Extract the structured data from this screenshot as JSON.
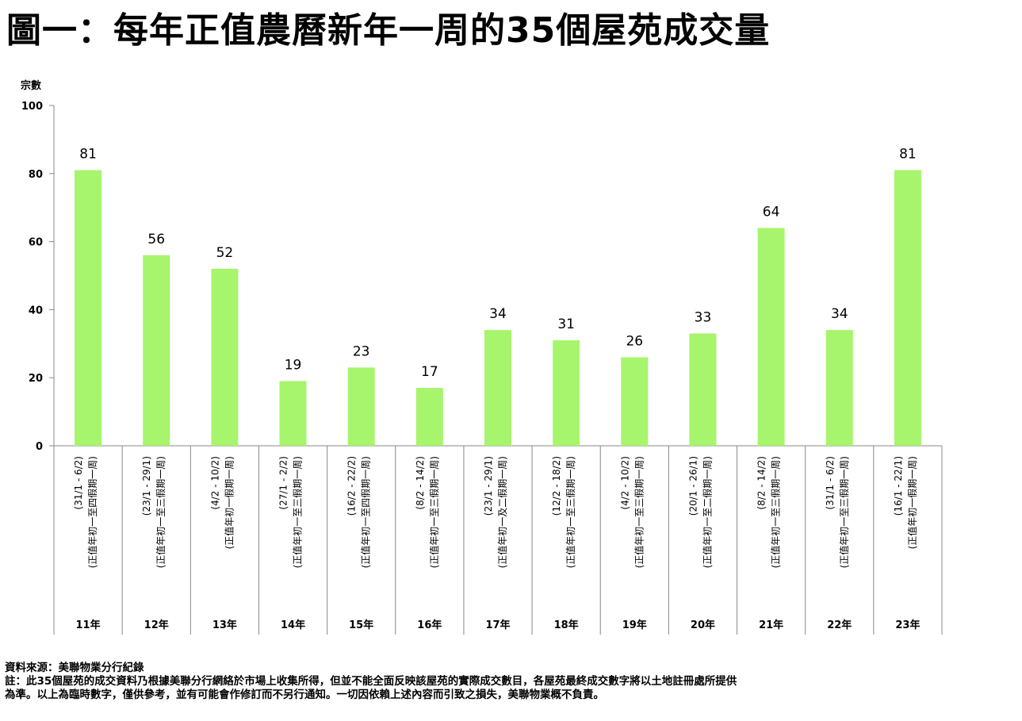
{
  "page": {
    "title": "圖一：每年正值農曆新年一周的35個屋苑成交量",
    "source": "資料來源：美聯物業分行紀錄",
    "note_line1": "註：此35個屋苑的成交資料乃根據美聯分行網絡於市場上收集所得，但並不能全面反映該屋苑的實際成交數目，各屋苑最終成交數字將以土地註冊處所提供",
    "note_line2": "為準。以上為臨時數字，僅供參考，並有可能會作修訂而不另行通知。一切因依賴上述內容而引致之損失，美聯物業概不負責。"
  },
  "chart_data": {
    "type": "bar",
    "ylabel": "宗數",
    "ylim": [
      0,
      100
    ],
    "yticks": [
      0,
      20,
      40,
      60,
      80,
      100
    ],
    "grid": false,
    "bar_color": "#a6f56c",
    "categories": [
      "11年",
      "12年",
      "13年",
      "14年",
      "15年",
      "16年",
      "17年",
      "18年",
      "19年",
      "20年",
      "21年",
      "22年",
      "23年"
    ],
    "date_ranges": [
      "(31/1 - 6/2)",
      "(23/1 - 29/1)",
      "(4/2 - 10/2)",
      "(27/1 - 2/2)",
      "(16/2 - 22/2)",
      "(8/2 - 14/2)",
      "(23/1 - 29/1)",
      "(12/2 - 18/2)",
      "(4/2 - 10/2)",
      "(20/1 - 26/1)",
      "(8/2 - 14/2)",
      "(31/1 - 6/2)",
      "(16/1 - 22/1)"
    ],
    "period_notes": [
      "(正值年初一至四假期一周)",
      "(正值年初一至三假期一周)",
      "(正值年初一假期一周)",
      "(正值年初一至三假期一周)",
      "(正值年初一至四假期一周)",
      "(正值年初一至三假期一周)",
      "(正值年初一及二假期一周)",
      "(正值年初一至三假期一周)",
      "(正值年初一至三假期一周)",
      "(正值年初一至二假期一周)",
      "(正值年初一至三假期一周)",
      "(正值年初一至三假期一周)",
      "(正值年初一假期一周)"
    ],
    "values": [
      81,
      56,
      52,
      19,
      23,
      17,
      34,
      31,
      26,
      33,
      64,
      34,
      81
    ],
    "data_labels": [
      "81",
      "56",
      "52",
      "19",
      "23",
      "17",
      "34",
      "31",
      "26",
      "33",
      "64",
      "34",
      "81"
    ]
  }
}
